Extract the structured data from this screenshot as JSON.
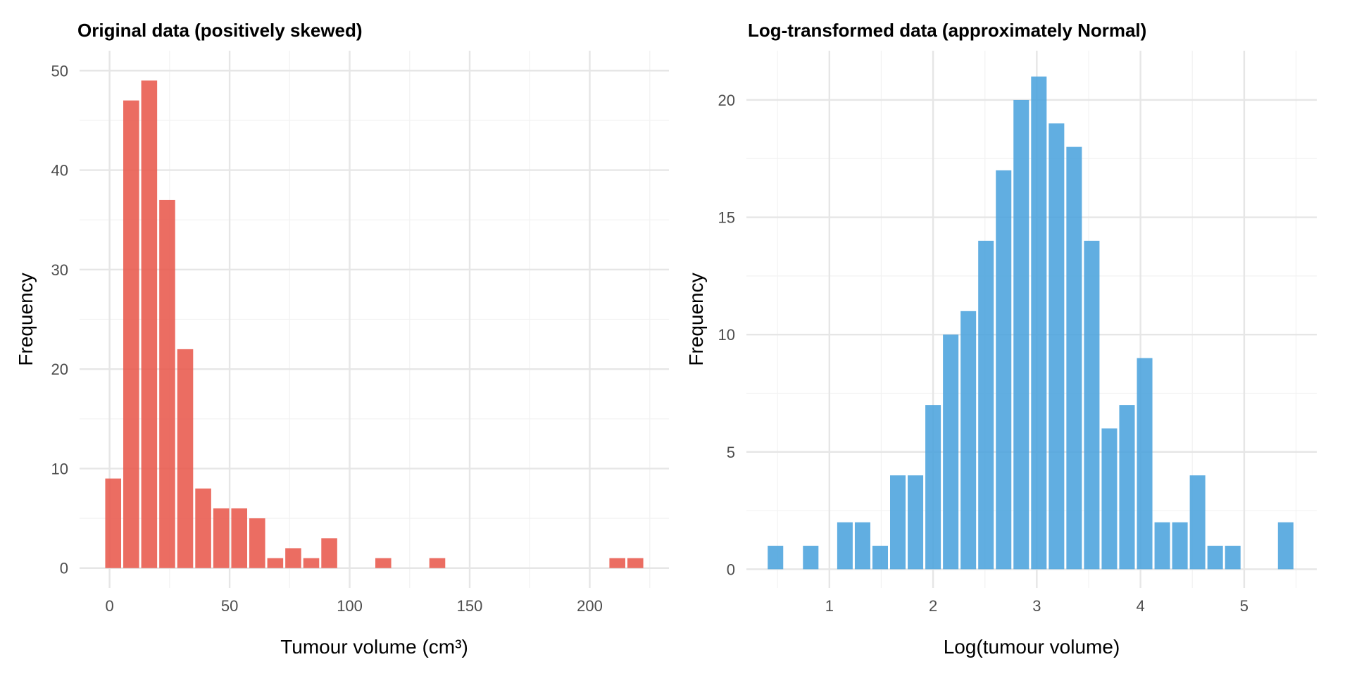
{
  "chart_data": [
    {
      "type": "bar",
      "title": "Original data (positively skewed)",
      "xlabel": "Tumour volume (cm³)",
      "ylabel": "Frequency",
      "color": "#E8594C",
      "xlim": [
        -12.5,
        233
      ],
      "ylim": [
        -2,
        52
      ],
      "x_ticks": [
        0,
        50,
        100,
        150,
        200
      ],
      "x_tick_labels": [
        "0",
        "50",
        "100",
        "150",
        "200"
      ],
      "y_ticks": [
        0,
        10,
        20,
        30,
        40,
        50
      ],
      "y_tick_labels": [
        "0",
        "10",
        "20",
        "30",
        "40",
        "50"
      ],
      "bin_width": 7.5,
      "bins": [
        {
          "x": 1.5,
          "count": 9
        },
        {
          "x": 9,
          "count": 47
        },
        {
          "x": 16.5,
          "count": 49
        },
        {
          "x": 24,
          "count": 37
        },
        {
          "x": 31.5,
          "count": 22
        },
        {
          "x": 39,
          "count": 8
        },
        {
          "x": 46.5,
          "count": 6
        },
        {
          "x": 54,
          "count": 6
        },
        {
          "x": 61.5,
          "count": 5
        },
        {
          "x": 69,
          "count": 1
        },
        {
          "x": 76.5,
          "count": 2
        },
        {
          "x": 84,
          "count": 1
        },
        {
          "x": 91.5,
          "count": 3
        },
        {
          "x": 114,
          "count": 1
        },
        {
          "x": 136.5,
          "count": 1
        },
        {
          "x": 211.5,
          "count": 1
        },
        {
          "x": 219,
          "count": 1
        }
      ]
    },
    {
      "type": "bar",
      "title": "Log-transformed data (approximately Normal)",
      "xlabel": "Log(tumour volume)",
      "ylabel": "Frequency",
      "color": "#4BA3DD",
      "xlim": [
        0.2,
        5.7
      ],
      "ylim": [
        -0.8,
        22.1
      ],
      "x_ticks": [
        1,
        2,
        3,
        4,
        5
      ],
      "x_tick_labels": [
        "1",
        "2",
        "3",
        "4",
        "5"
      ],
      "y_ticks": [
        0,
        5,
        10,
        15,
        20
      ],
      "y_tick_labels": [
        "0",
        "5",
        "10",
        "15",
        "20"
      ],
      "bin_width": 0.17,
      "bins": [
        {
          "x": 0.48,
          "count": 1
        },
        {
          "x": 0.82,
          "count": 1
        },
        {
          "x": 1.15,
          "count": 2
        },
        {
          "x": 1.32,
          "count": 2
        },
        {
          "x": 1.49,
          "count": 1
        },
        {
          "x": 1.66,
          "count": 4
        },
        {
          "x": 1.83,
          "count": 4
        },
        {
          "x": 2.0,
          "count": 7
        },
        {
          "x": 2.17,
          "count": 10
        },
        {
          "x": 2.34,
          "count": 11
        },
        {
          "x": 2.51,
          "count": 14
        },
        {
          "x": 2.68,
          "count": 17
        },
        {
          "x": 2.85,
          "count": 20
        },
        {
          "x": 3.02,
          "count": 21
        },
        {
          "x": 3.19,
          "count": 19
        },
        {
          "x": 3.36,
          "count": 18
        },
        {
          "x": 3.53,
          "count": 14
        },
        {
          "x": 3.7,
          "count": 6
        },
        {
          "x": 3.87,
          "count": 7
        },
        {
          "x": 4.04,
          "count": 9
        },
        {
          "x": 4.21,
          "count": 2
        },
        {
          "x": 4.38,
          "count": 2
        },
        {
          "x": 4.55,
          "count": 4
        },
        {
          "x": 4.72,
          "count": 1
        },
        {
          "x": 4.89,
          "count": 1
        },
        {
          "x": 5.4,
          "count": 2
        }
      ]
    }
  ]
}
